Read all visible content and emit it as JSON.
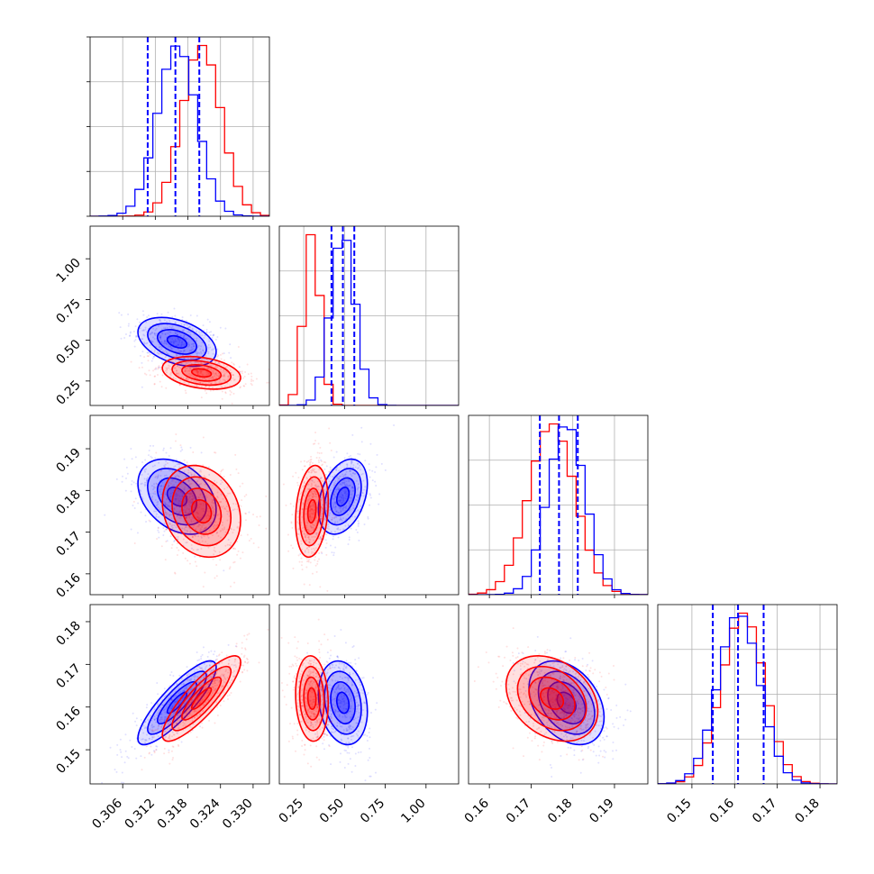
{
  "colors": {
    "series_a": "#0000ff",
    "series_b": "#ff0000",
    "grid": "#b0b0b0",
    "axis": "#000000"
  },
  "chart_data": {
    "type": "corner",
    "grid": true,
    "parameters": [
      {
        "index": 0,
        "range": [
          0.3,
          0.333
        ],
        "ticks": [
          "0.306",
          "0.312",
          "0.318",
          "0.324",
          "0.330"
        ],
        "tick_values": [
          0.306,
          0.312,
          0.318,
          0.324,
          0.33
        ]
      },
      {
        "index": 1,
        "range": [
          0.1,
          1.2
        ],
        "ticks": [
          "0.25",
          "0.50",
          "0.75",
          "1.00"
        ],
        "tick_values": [
          0.25,
          0.5,
          0.75,
          1.0
        ]
      },
      {
        "index": 2,
        "range": [
          0.155,
          0.198
        ],
        "ticks": [
          "0.16",
          "0.17",
          "0.18",
          "0.19"
        ],
        "tick_values": [
          0.16,
          0.17,
          0.18,
          0.19
        ]
      },
      {
        "index": 3,
        "range": [
          0.142,
          0.184
        ],
        "ticks": [
          "0.15",
          "0.16",
          "0.17",
          "0.18"
        ],
        "tick_values": [
          0.15,
          0.16,
          0.17,
          0.18
        ]
      }
    ],
    "series": [
      {
        "color": "#0000ff",
        "mean": [
          0.316,
          0.49,
          0.1785,
          0.161
        ],
        "std": [
          0.0036,
          0.075,
          0.0045,
          0.0049
        ],
        "corr": {
          "0-1": -0.4,
          "0-2": -0.35,
          "0-3": 0.85,
          "1-2": 0.35,
          "1-3": -0.2,
          "2-3": -0.35
        },
        "quantiles": [
          [
            0.3106,
            0.3157,
            0.3201
          ],
          [
            0.42,
            0.49,
            0.56
          ],
          [
            0.1721,
            0.1767,
            0.1812
          ],
          [
            0.1549,
            0.1608,
            0.1668
          ]
        ]
      },
      {
        "color": "#ff0000",
        "mean": [
          0.3205,
          0.3,
          0.175,
          0.162
        ],
        "std": [
          0.0036,
          0.05,
          0.0055,
          0.005
        ],
        "corr": {
          "0-1": -0.3,
          "0-2": -0.2,
          "0-3": 0.85,
          "1-2": 0.2,
          "1-3": -0.1,
          "2-3": -0.3
        }
      }
    ]
  }
}
